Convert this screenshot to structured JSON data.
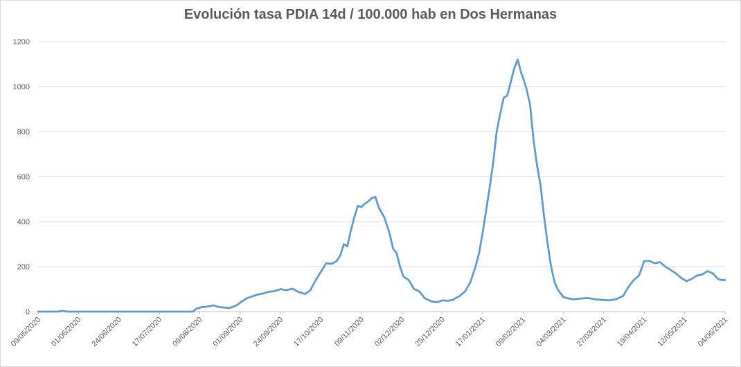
{
  "chart_data": {
    "type": "line",
    "title": "Evolución tasa PDIA 14d / 100.000 hab en Dos Hermanas",
    "xlabel": "",
    "ylabel": "",
    "ylim": [
      0,
      1200
    ],
    "yticks": [
      0,
      200,
      400,
      600,
      800,
      1000,
      1200
    ],
    "grid": true,
    "legend": "none",
    "x_tick_labels": [
      "09/05/2020",
      "01/06/2020",
      "24/06/2020",
      "17/07/2020",
      "09/08/2020",
      "01/09/2020",
      "24/09/2020",
      "17/10/2020",
      "09/11/2020",
      "02/12/2020",
      "25/12/2020",
      "17/01/2021",
      "09/02/2021",
      "04/03/2021",
      "27/03/2021",
      "19/04/2021",
      "12/05/2021",
      "04/06/2021"
    ],
    "line_color": "#5b9bd5",
    "series": [
      {
        "x": [
          "2020-05-09",
          "2020-05-20",
          "2020-05-23",
          "2020-05-26",
          "2020-06-10",
          "2020-07-01",
          "2020-07-20",
          "2020-08-05",
          "2020-08-07",
          "2020-08-10",
          "2020-08-13",
          "2020-08-17",
          "2020-08-20",
          "2020-08-23",
          "2020-08-26",
          "2020-08-30",
          "2020-09-02",
          "2020-09-05",
          "2020-09-08",
          "2020-09-11",
          "2020-09-14",
          "2020-09-17",
          "2020-09-20",
          "2020-09-24",
          "2020-09-27",
          "2020-10-01",
          "2020-10-04",
          "2020-10-08",
          "2020-10-11",
          "2020-10-14",
          "2020-10-16",
          "2020-10-18",
          "2020-10-20",
          "2020-10-23",
          "2020-10-26",
          "2020-10-28",
          "2020-10-30",
          "2020-11-01",
          "2020-11-03",
          "2020-11-05",
          "2020-11-07",
          "2020-11-09",
          "2020-11-11",
          "2020-11-13",
          "2020-11-15",
          "2020-11-17",
          "2020-11-19",
          "2020-11-22",
          "2020-11-25",
          "2020-11-27",
          "2020-11-29",
          "2020-12-01",
          "2020-12-03",
          "2020-12-06",
          "2020-12-09",
          "2020-12-12",
          "2020-12-15",
          "2020-12-19",
          "2020-12-22",
          "2020-12-25",
          "2020-12-28",
          "2020-12-31",
          "2021-01-04",
          "2021-01-07",
          "2021-01-10",
          "2021-01-13",
          "2021-01-15",
          "2021-01-17",
          "2021-01-19",
          "2021-01-21",
          "2021-01-23",
          "2021-01-25",
          "2021-01-27",
          "2021-01-29",
          "2021-01-31",
          "2021-02-02",
          "2021-02-04",
          "2021-02-06",
          "2021-02-08",
          "2021-02-09",
          "2021-02-11",
          "2021-02-13",
          "2021-02-15",
          "2021-02-17",
          "2021-02-19",
          "2021-02-21",
          "2021-02-23",
          "2021-02-25",
          "2021-02-27",
          "2021-03-01",
          "2021-03-04",
          "2021-03-07",
          "2021-03-10",
          "2021-03-14",
          "2021-03-18",
          "2021-03-22",
          "2021-03-26",
          "2021-03-30",
          "2021-04-03",
          "2021-04-07",
          "2021-04-10",
          "2021-04-13",
          "2021-04-16",
          "2021-04-19",
          "2021-04-22",
          "2021-04-25",
          "2021-04-28",
          "2021-05-01",
          "2021-05-04",
          "2021-05-07",
          "2021-05-10",
          "2021-05-13",
          "2021-05-16",
          "2021-05-19",
          "2021-05-22",
          "2021-05-25",
          "2021-05-28",
          "2021-05-31",
          "2021-06-02",
          "2021-06-04"
        ],
        "values": [
          0,
          0,
          3,
          0,
          0,
          0,
          0,
          0,
          12,
          20,
          22,
          28,
          20,
          18,
          16,
          28,
          45,
          60,
          68,
          76,
          80,
          88,
          90,
          100,
          95,
          102,
          88,
          78,
          95,
          140,
          165,
          190,
          215,
          212,
          225,
          250,
          300,
          290,
          360,
          420,
          470,
          465,
          480,
          490,
          505,
          510,
          460,
          420,
          350,
          280,
          260,
          200,
          155,
          140,
          100,
          90,
          60,
          45,
          42,
          50,
          48,
          52,
          70,
          90,
          130,
          200,
          260,
          350,
          450,
          550,
          660,
          800,
          880,
          950,
          960,
          1020,
          1080,
          1120,
          1060,
          1040,
          990,
          920,
          760,
          650,
          560,
          420,
          300,
          200,
          130,
          95,
          65,
          58,
          55,
          58,
          60,
          55,
          52,
          50,
          55,
          70,
          110,
          140,
          160,
          225,
          225,
          215,
          220,
          200,
          185,
          170,
          150,
          135,
          145,
          160,
          165,
          180,
          170,
          145,
          140,
          140
        ]
      }
    ]
  }
}
